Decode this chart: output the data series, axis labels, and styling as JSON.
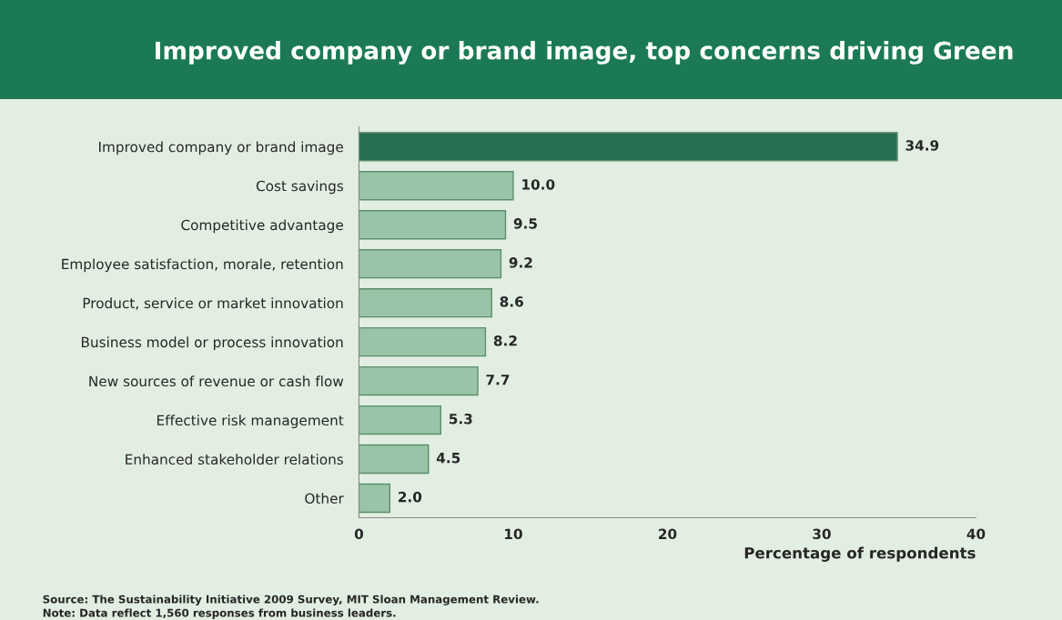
{
  "chart_data": {
    "type": "bar",
    "orientation": "horizontal",
    "title": "Improved company or brand image, top concerns driving Green",
    "categories": [
      "Improved company or brand image",
      "Cost savings",
      "Competitive advantage",
      "Employee satisfaction, morale, retention",
      "Product, service or market innovation",
      "Business model or process innovation",
      "New sources of revenue or cash flow",
      "Effective risk management",
      "Enhanced stakeholder relations",
      "Other"
    ],
    "values": [
      34.9,
      10.0,
      9.5,
      9.2,
      8.6,
      8.2,
      7.7,
      5.3,
      4.5,
      2.0
    ],
    "value_labels": [
      "34.9",
      "10.0",
      "9.5",
      "9.2",
      "8.6",
      "8.2",
      "7.7",
      "5.3",
      "4.5",
      "2.0"
    ],
    "colors": [
      "#1b7a55",
      "#93cba6",
      "#93cba6",
      "#93cba6",
      "#93cba6",
      "#93cba6",
      "#93cba6",
      "#93cba6",
      "#93cba6",
      "#93cba6"
    ],
    "xlabel": "Percentage of respondents",
    "xlim": [
      0,
      40
    ],
    "xticks": [
      0,
      10,
      20,
      30,
      40
    ],
    "grid": false,
    "legend": false,
    "annotations": [
      "Source: The Sustainability Initiative 2009 Survey, MIT Sloan Management Review.",
      "Note: Data reflect 1,560 responses from business leaders."
    ]
  }
}
